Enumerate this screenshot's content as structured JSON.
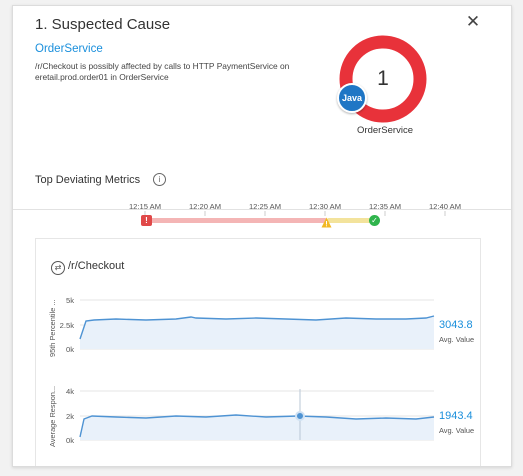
{
  "header": {
    "title": "1. Suspected Cause",
    "close_icon": "close-icon"
  },
  "cause": {
    "service_link": "OrderService",
    "description": "/r/Checkout is possibly affected by calls to HTTP PaymentService on eretail.prod.order01 in OrderService"
  },
  "donut": {
    "count": "1",
    "badge": "Java",
    "label": "OrderService",
    "ring_color": "#e8323a",
    "badge_color": "#1f76c5"
  },
  "metrics": {
    "section_title": "Top Deviating Metrics",
    "info_icon": "info-icon",
    "timeline": {
      "ticks": [
        "12:15 AM",
        "12:20 AM",
        "12:25 AM",
        "12:30 AM",
        "12:35 AM",
        "12:40 AM"
      ],
      "markers": [
        {
          "type": "error",
          "glyph": "!"
        },
        {
          "type": "warning"
        },
        {
          "type": "ok",
          "glyph": "✓"
        }
      ]
    },
    "card": {
      "icon": "transaction-icon",
      "title": "/r/Checkout",
      "charts": [
        {
          "title": "95th Percentile ...",
          "yticks": [
            "5k",
            "2.5k",
            "0k"
          ],
          "avg_value": "3043.8",
          "avg_label": "Avg. Value"
        },
        {
          "title": "Average Respon...",
          "yticks": [
            "4k",
            "2k",
            "0k"
          ],
          "avg_value": "1943.4",
          "avg_label": "Avg. Value"
        }
      ]
    }
  }
}
